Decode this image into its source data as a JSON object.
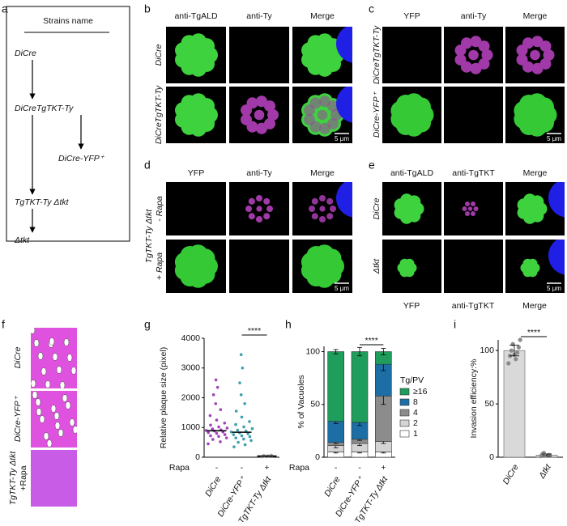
{
  "panel_labels": [
    "a",
    "b",
    "c",
    "d",
    "e",
    "f",
    "g",
    "h",
    "i"
  ],
  "a": {
    "title": "Strains name",
    "strains": [
      "DiCre",
      "DiCreTgTKT-Ty",
      "DiCre-YFP⁺",
      "TgTKT-Ty Δtkt",
      "Δtkt"
    ]
  },
  "b": {
    "columns": [
      "anti-TgALD",
      "anti-Ty",
      "Merge"
    ],
    "rows": [
      "DiCre",
      "DiCreTgTKT-Ty"
    ],
    "scale": "5 μm"
  },
  "c": {
    "columns": [
      "YFP",
      "anti-Ty",
      "Merge"
    ],
    "rows": [
      "DiCreTgTKT-Ty",
      "DiCre-YFP⁺"
    ],
    "scale": "5 μm"
  },
  "d": {
    "columns": [
      "YFP",
      "anti-Ty",
      "Merge"
    ],
    "group": "TgTKT-Ty Δtkt",
    "rows": [
      "- Rapa",
      "+ Rapa"
    ],
    "scale": "5 μm"
  },
  "e": {
    "columns": [
      "anti-TgALD",
      "anti-TgTKT",
      "Merge"
    ],
    "rows": [
      "DiCre",
      "Δtkt"
    ],
    "bottom_columns": [
      "YFP",
      "anti-TgTKT",
      "Merge"
    ],
    "scale": "5 μm"
  },
  "f": {
    "rows": [
      "DiCre",
      "DiCre-YFP⁺",
      "TgTKT-Ty Δtkt",
      "+Rapa"
    ]
  },
  "chart_data": [
    {
      "type": "strip",
      "ylabel": "Relative plaque size (pixel)",
      "categories": [
        "DiCre",
        "DiCre-YFP⁺",
        "TgTKT-Ty Δtkt"
      ],
      "rapa_label": "Rapa",
      "rapa": [
        "-",
        "-",
        "+"
      ],
      "colors": [
        "#8e24aa",
        "#1a8fa0",
        "#999999"
      ],
      "means": [
        890,
        840,
        40
      ],
      "points": [
        [
          450,
          520,
          600,
          650,
          700,
          720,
          760,
          800,
          830,
          850,
          880,
          900,
          920,
          950,
          980,
          1020,
          1080,
          1150,
          1250,
          1400,
          1600,
          1800,
          2100,
          2350,
          2600
        ],
        [
          350,
          420,
          500,
          560,
          610,
          650,
          690,
          720,
          760,
          790,
          820,
          850,
          880,
          910,
          960,
          1020,
          1100,
          1200,
          1350,
          1550,
          1800,
          2100,
          2500,
          3000,
          3450
        ],
        [
          10,
          20,
          30,
          40,
          50,
          60,
          70
        ]
      ],
      "ylim": [
        0,
        4000
      ],
      "yticks": [
        0,
        1000,
        2000,
        3000,
        4000
      ],
      "significance": "****"
    },
    {
      "type": "stacked_bar",
      "ylabel": "% of Vacuoles",
      "legend_title": "Tg/PV",
      "categories": [
        "DiCre",
        "DiCre-YFP⁺",
        "TgTKT-Ty Δtkt"
      ],
      "rapa_label": "Rapa",
      "rapa": [
        "-",
        "-",
        "+"
      ],
      "series": [
        {
          "name": "1",
          "color": "#ffffff",
          "values": [
            5,
            5,
            5
          ],
          "errors": [
            1,
            1,
            1
          ]
        },
        {
          "name": "2",
          "color": "#d4d4d4",
          "values": [
            6,
            8,
            10
          ],
          "errors": [
            2,
            2,
            2
          ]
        },
        {
          "name": "4",
          "color": "#8c8c8c",
          "values": [
            3,
            4,
            43
          ],
          "errors": [
            1,
            1,
            8
          ]
        },
        {
          "name": "8",
          "color": "#1c6ea4",
          "values": [
            20,
            16,
            30
          ],
          "errors": [
            2,
            3,
            6
          ]
        },
        {
          "name": "≥16",
          "color": "#1f9d5c",
          "values": [
            66,
            67,
            12
          ],
          "errors": [
            2,
            4,
            3
          ]
        }
      ],
      "ylim": [
        0,
        105
      ],
      "yticks": [
        0,
        50,
        100
      ],
      "significance": "****"
    },
    {
      "type": "bar",
      "ylabel": "Invasion efficiency:%",
      "categories": [
        "DiCre",
        "Δtkt"
      ],
      "values": [
        100,
        2
      ],
      "errors": [
        5,
        1
      ],
      "points": [
        [
          88,
          92,
          95,
          98,
          100,
          103,
          106,
          110,
          96
        ],
        [
          1,
          2,
          3,
          2,
          4
        ]
      ],
      "color": "#d9d9d9",
      "ylim": [
        0,
        110
      ],
      "yticks": [
        0,
        50,
        100
      ],
      "significance": "****"
    }
  ]
}
